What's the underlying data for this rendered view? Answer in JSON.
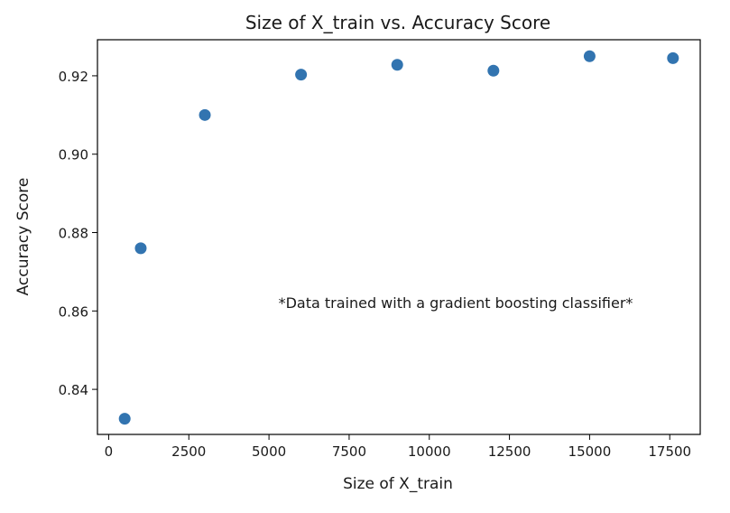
{
  "chart_data": {
    "type": "scatter",
    "title": "Size of X_train vs. Accuracy Score",
    "xlabel": "Size of X_train",
    "ylabel": "Accuracy Score",
    "annotation": "*Data trained with a gradient boosting classifier*",
    "xlim": [
      -350,
      18450
    ],
    "ylim": [
      0.8285,
      0.9292
    ],
    "xticks": [
      0,
      2500,
      5000,
      7500,
      10000,
      12500,
      15000,
      17500
    ],
    "yticks": [
      0.84,
      0.86,
      0.88,
      0.9,
      0.92
    ],
    "ytick_labels": [
      "0.84",
      "0.86",
      "0.88",
      "0.90",
      "0.92"
    ],
    "grid": false,
    "marker_color": "#3274b0",
    "series": [
      {
        "x": [
          500,
          1000,
          3000,
          6000,
          9000,
          12000,
          15000,
          17600
        ],
        "y": [
          0.8325,
          0.876,
          0.91,
          0.9203,
          0.9228,
          0.9213,
          0.925,
          0.9245
        ]
      }
    ]
  }
}
